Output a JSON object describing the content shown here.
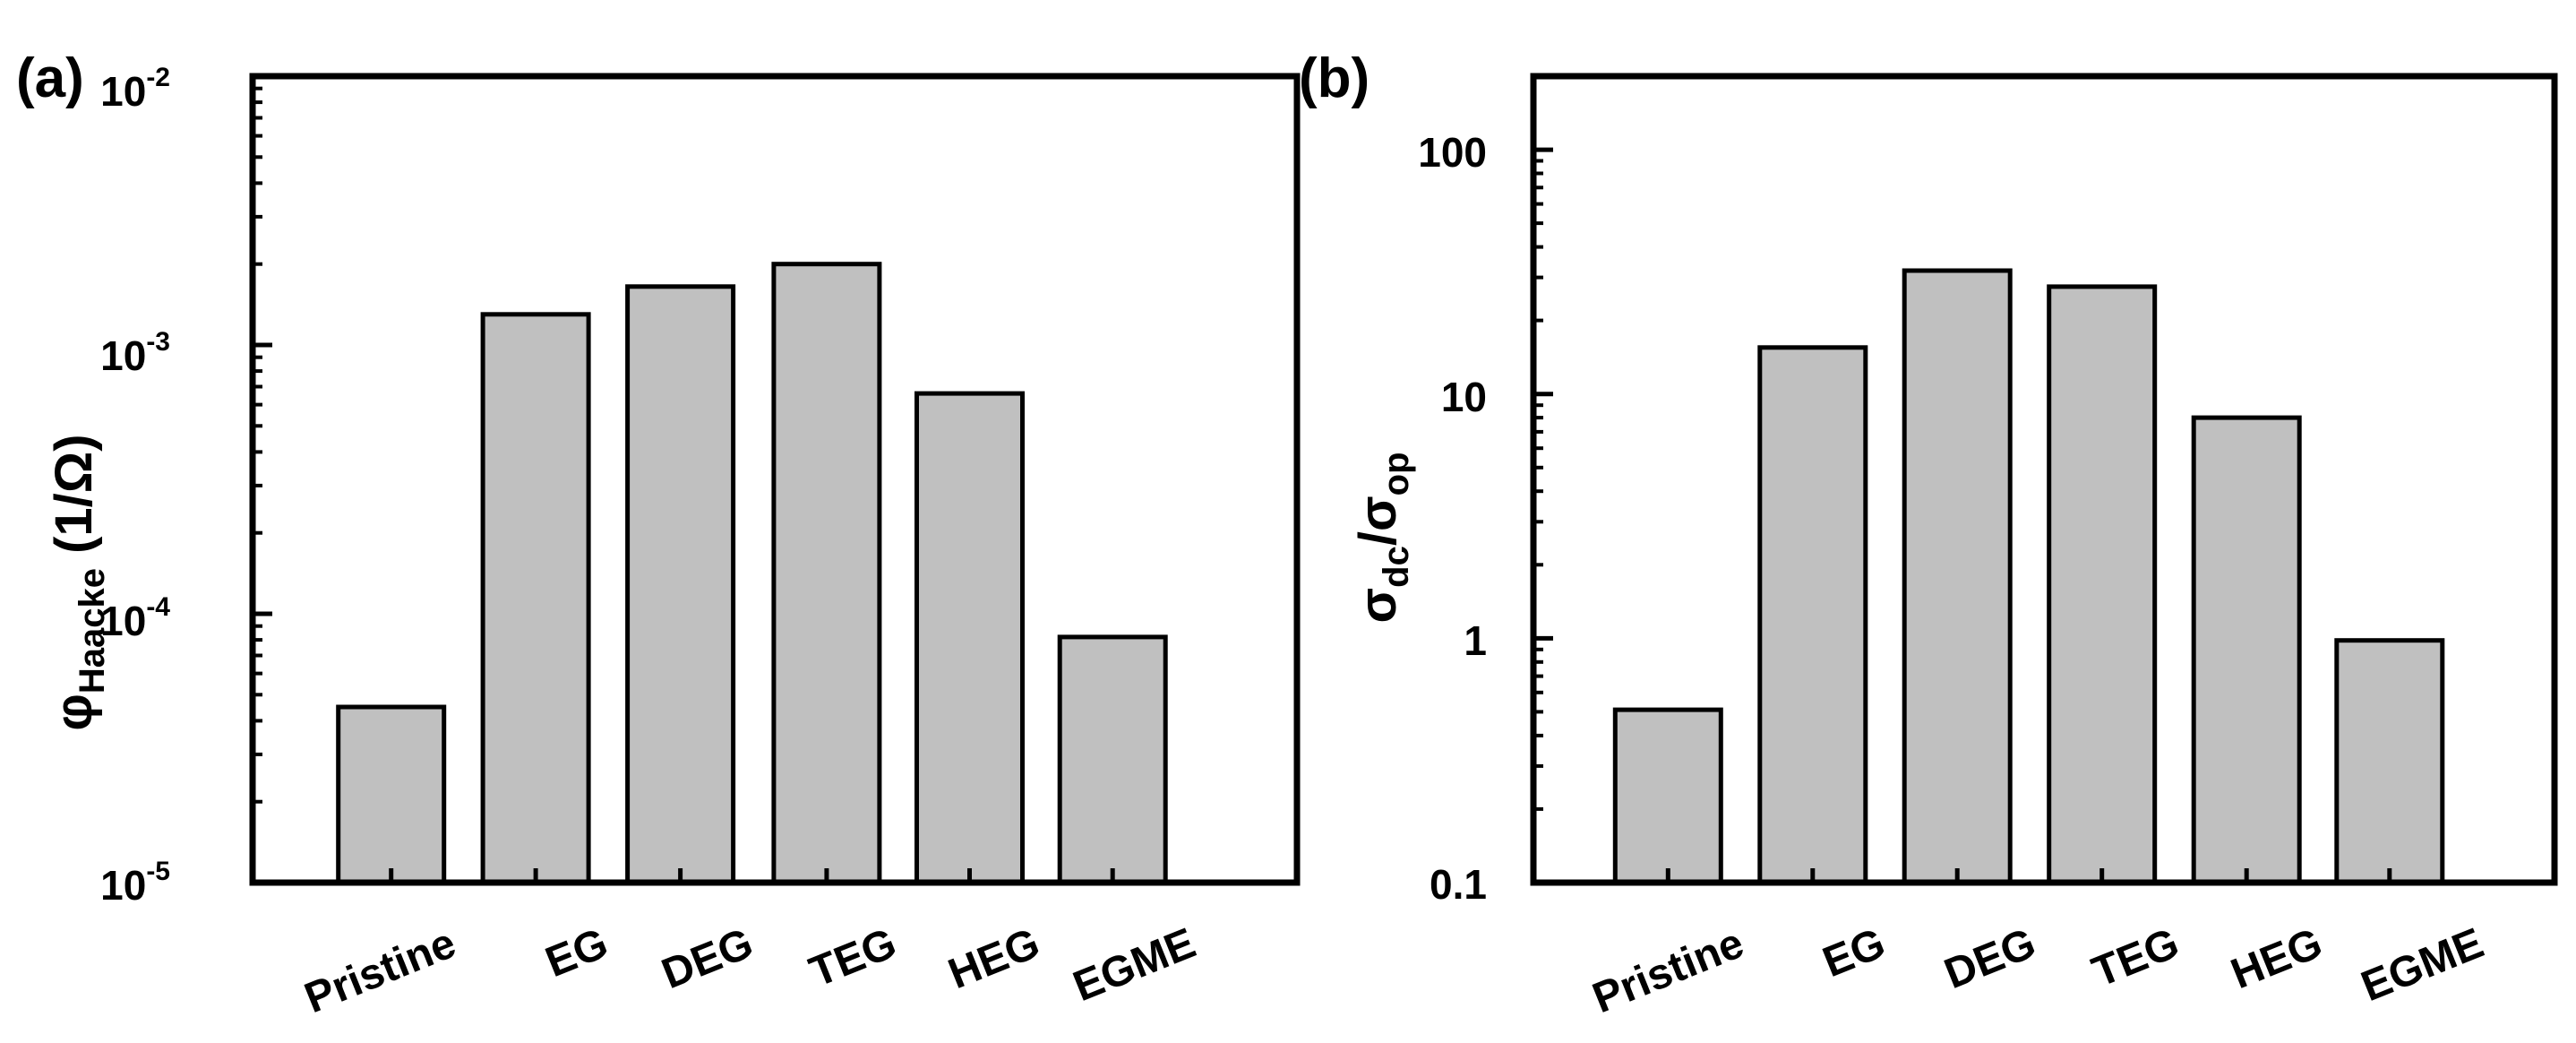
{
  "chart_data": [
    {
      "type": "bar",
      "panel_label": "(a)",
      "categories": [
        "Pristine",
        "EG",
        "DEG",
        "TEG",
        "HEG",
        "EGME"
      ],
      "values": [
        4.5e-05,
        0.0013,
        0.00165,
        0.002,
        0.00066,
        8.2e-05
      ],
      "yscale": "log",
      "ylim": [
        1e-05,
        0.01
      ],
      "yticks": [
        1e-05,
        0.0001,
        0.001,
        0.01
      ],
      "ytick_labels": [
        {
          "base": "10",
          "exp": "-5"
        },
        {
          "base": "10",
          "exp": "-4"
        },
        {
          "base": "10",
          "exp": "-3"
        },
        {
          "base": "10",
          "exp": "-2"
        }
      ],
      "ylabel": {
        "symbol": "φ",
        "sub": "Haacke",
        "unit": " (1/Ω)"
      },
      "xlabel": "",
      "bar_color": "#c0c0c0",
      "grid": false
    },
    {
      "type": "bar",
      "panel_label": "(b)",
      "categories": [
        "Pristine",
        "EG",
        "DEG",
        "TEG",
        "HEG",
        "EGME"
      ],
      "values": [
        0.51,
        15.5,
        32,
        27.5,
        8.0,
        0.98
      ],
      "yscale": "log",
      "ylim": [
        0.1,
        200
      ],
      "yticks": [
        0.1,
        1,
        10,
        100
      ],
      "ytick_labels": [
        {
          "base": "0.1",
          "exp": ""
        },
        {
          "base": "1",
          "exp": ""
        },
        {
          "base": "10",
          "exp": ""
        },
        {
          "base": "100",
          "exp": ""
        }
      ],
      "ylabel": {
        "symbol": "σ",
        "sub": "dc",
        "mid": "/σ",
        "sub2": "op"
      },
      "xlabel": "",
      "bar_color": "#c0c0c0",
      "grid": false
    }
  ]
}
